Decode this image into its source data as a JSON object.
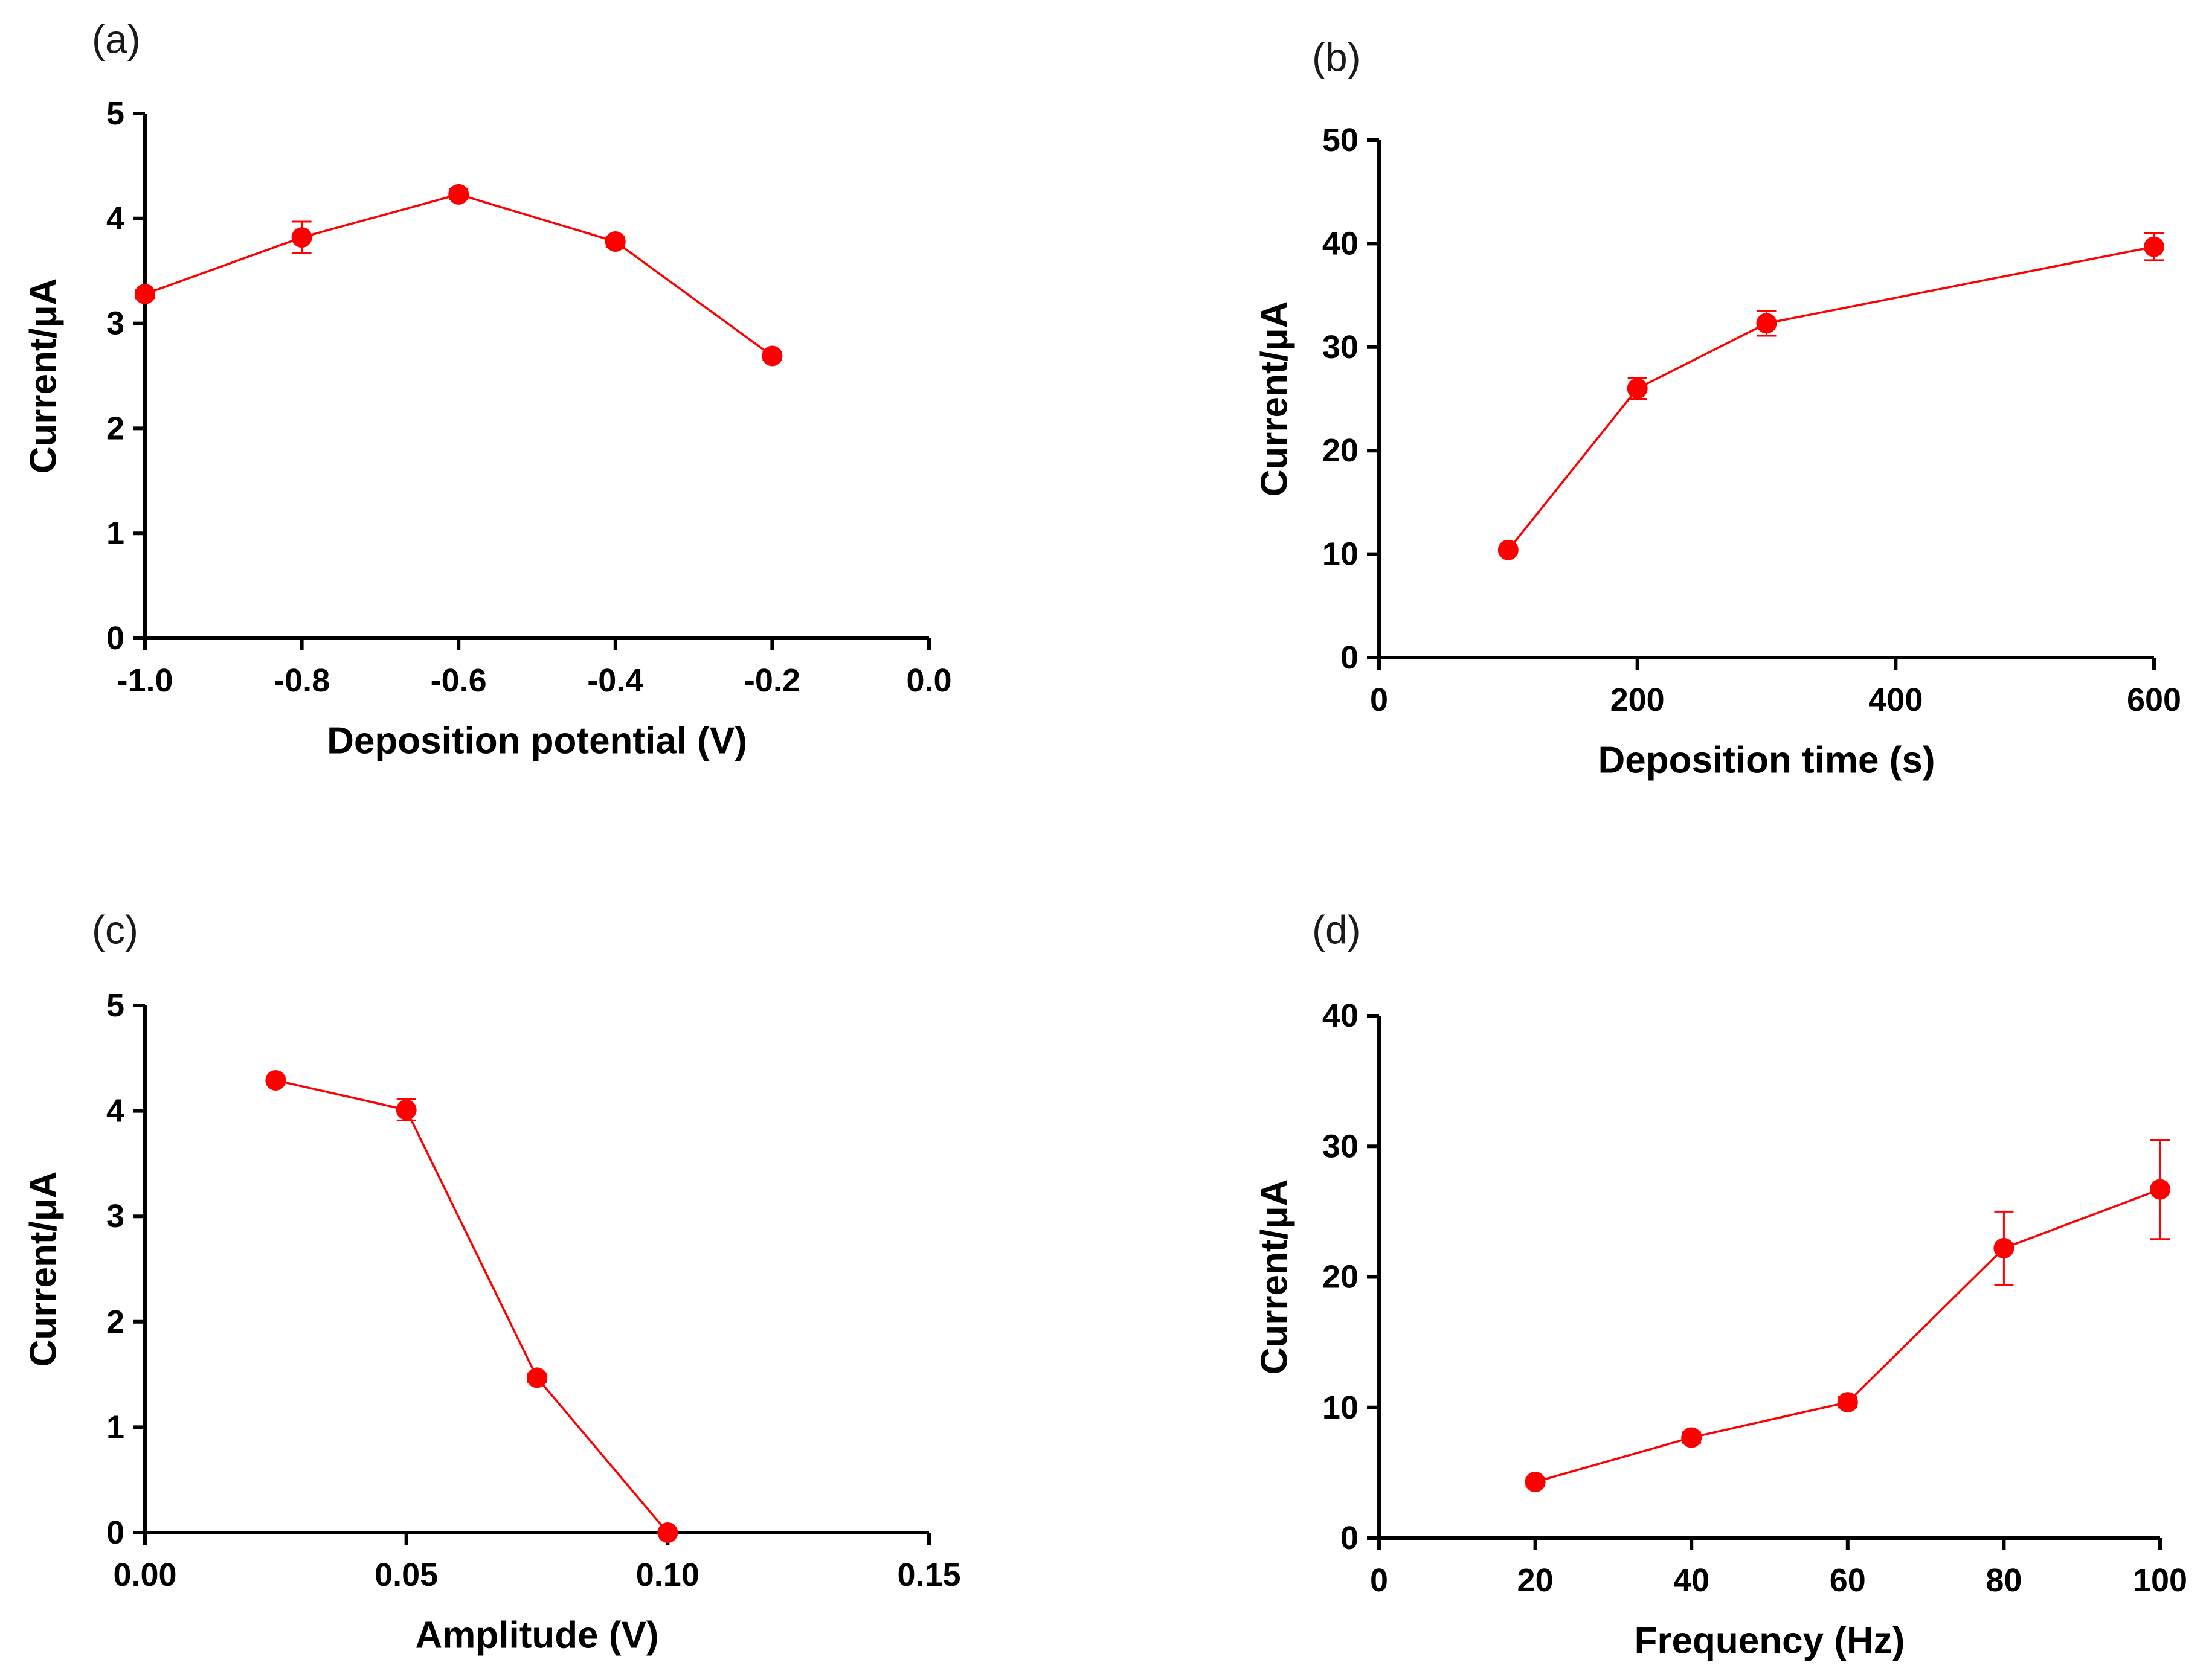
{
  "colors": {
    "series": "#ff0000",
    "axis": "#000000"
  },
  "chart_data": [
    {
      "panel": "(a)",
      "type": "line",
      "title": "",
      "xlabel": "Deposition potential (V)",
      "ylabel": "Current/μA",
      "xlim": [
        -1.0,
        0.0
      ],
      "ylim": [
        0,
        5
      ],
      "xticks": [
        -1.0,
        -0.8,
        -0.6,
        -0.4,
        -0.2,
        0.0
      ],
      "xtick_labels": [
        "-1.0",
        "-0.8",
        "-0.6",
        "-0.4",
        "-0.2",
        "0.0"
      ],
      "yticks": [
        0,
        1,
        2,
        3,
        4,
        5
      ],
      "ytick_labels": [
        "0",
        "1",
        "2",
        "3",
        "4",
        "5"
      ],
      "grid": false,
      "series": [
        {
          "name": "current",
          "x": [
            -1.0,
            -0.8,
            -0.6,
            -0.4,
            -0.2
          ],
          "y": [
            3.28,
            3.82,
            4.23,
            3.78,
            2.69
          ],
          "yerr": [
            0.04,
            0.15,
            0.05,
            0.05,
            0.04
          ]
        }
      ]
    },
    {
      "panel": "(b)",
      "type": "line",
      "title": "",
      "xlabel": "Deposition time (s)",
      "ylabel": "Current/μA",
      "xlim": [
        0,
        600
      ],
      "ylim": [
        0,
        50
      ],
      "xticks": [
        0,
        200,
        400,
        600
      ],
      "xtick_labels": [
        "0",
        "200",
        "400",
        "600"
      ],
      "yticks": [
        0,
        10,
        20,
        30,
        40,
        50
      ],
      "ytick_labels": [
        "0",
        "10",
        "20",
        "30",
        "40",
        "50"
      ],
      "grid": false,
      "series": [
        {
          "name": "current",
          "x": [
            100,
            200,
            300,
            600
          ],
          "y": [
            10.4,
            26.0,
            32.3,
            39.7
          ],
          "yerr": [
            0.3,
            1.0,
            1.2,
            1.3
          ]
        }
      ]
    },
    {
      "panel": "(c)",
      "type": "line",
      "title": "",
      "xlabel": "Amplitude (V)",
      "ylabel": "Current/μA",
      "xlim": [
        0.0,
        0.15
      ],
      "ylim": [
        0,
        5
      ],
      "xticks": [
        0.0,
        0.05,
        0.1,
        0.15
      ],
      "xtick_labels": [
        "0.00",
        "0.05",
        "0.10",
        "0.15"
      ],
      "yticks": [
        0,
        1,
        2,
        3,
        4,
        5
      ],
      "ytick_labels": [
        "0",
        "1",
        "2",
        "3",
        "4",
        "5"
      ],
      "grid": false,
      "series": [
        {
          "name": "current",
          "x": [
            0.025,
            0.05,
            0.075,
            0.1
          ],
          "y": [
            4.29,
            4.01,
            1.47,
            0.0
          ],
          "yerr": [
            0.04,
            0.1,
            0.04,
            0.02
          ]
        }
      ]
    },
    {
      "panel": "(d)",
      "type": "line",
      "title": "",
      "xlabel": "Frequency (Hz)",
      "ylabel": "Current/μA",
      "xlim": [
        0,
        100
      ],
      "ylim": [
        0,
        40
      ],
      "xticks": [
        0,
        20,
        40,
        60,
        80,
        100
      ],
      "xtick_labels": [
        "0",
        "20",
        "40",
        "60",
        "80",
        "100"
      ],
      "yticks": [
        0,
        10,
        20,
        30,
        40
      ],
      "ytick_labels": [
        "0",
        "10",
        "20",
        "30",
        "40"
      ],
      "grid": false,
      "series": [
        {
          "name": "current",
          "x": [
            20,
            40,
            60,
            80,
            100
          ],
          "y": [
            4.3,
            7.7,
            10.4,
            22.2,
            26.7
          ],
          "yerr": [
            0.3,
            0.4,
            0.4,
            2.8,
            3.8
          ]
        }
      ]
    }
  ]
}
